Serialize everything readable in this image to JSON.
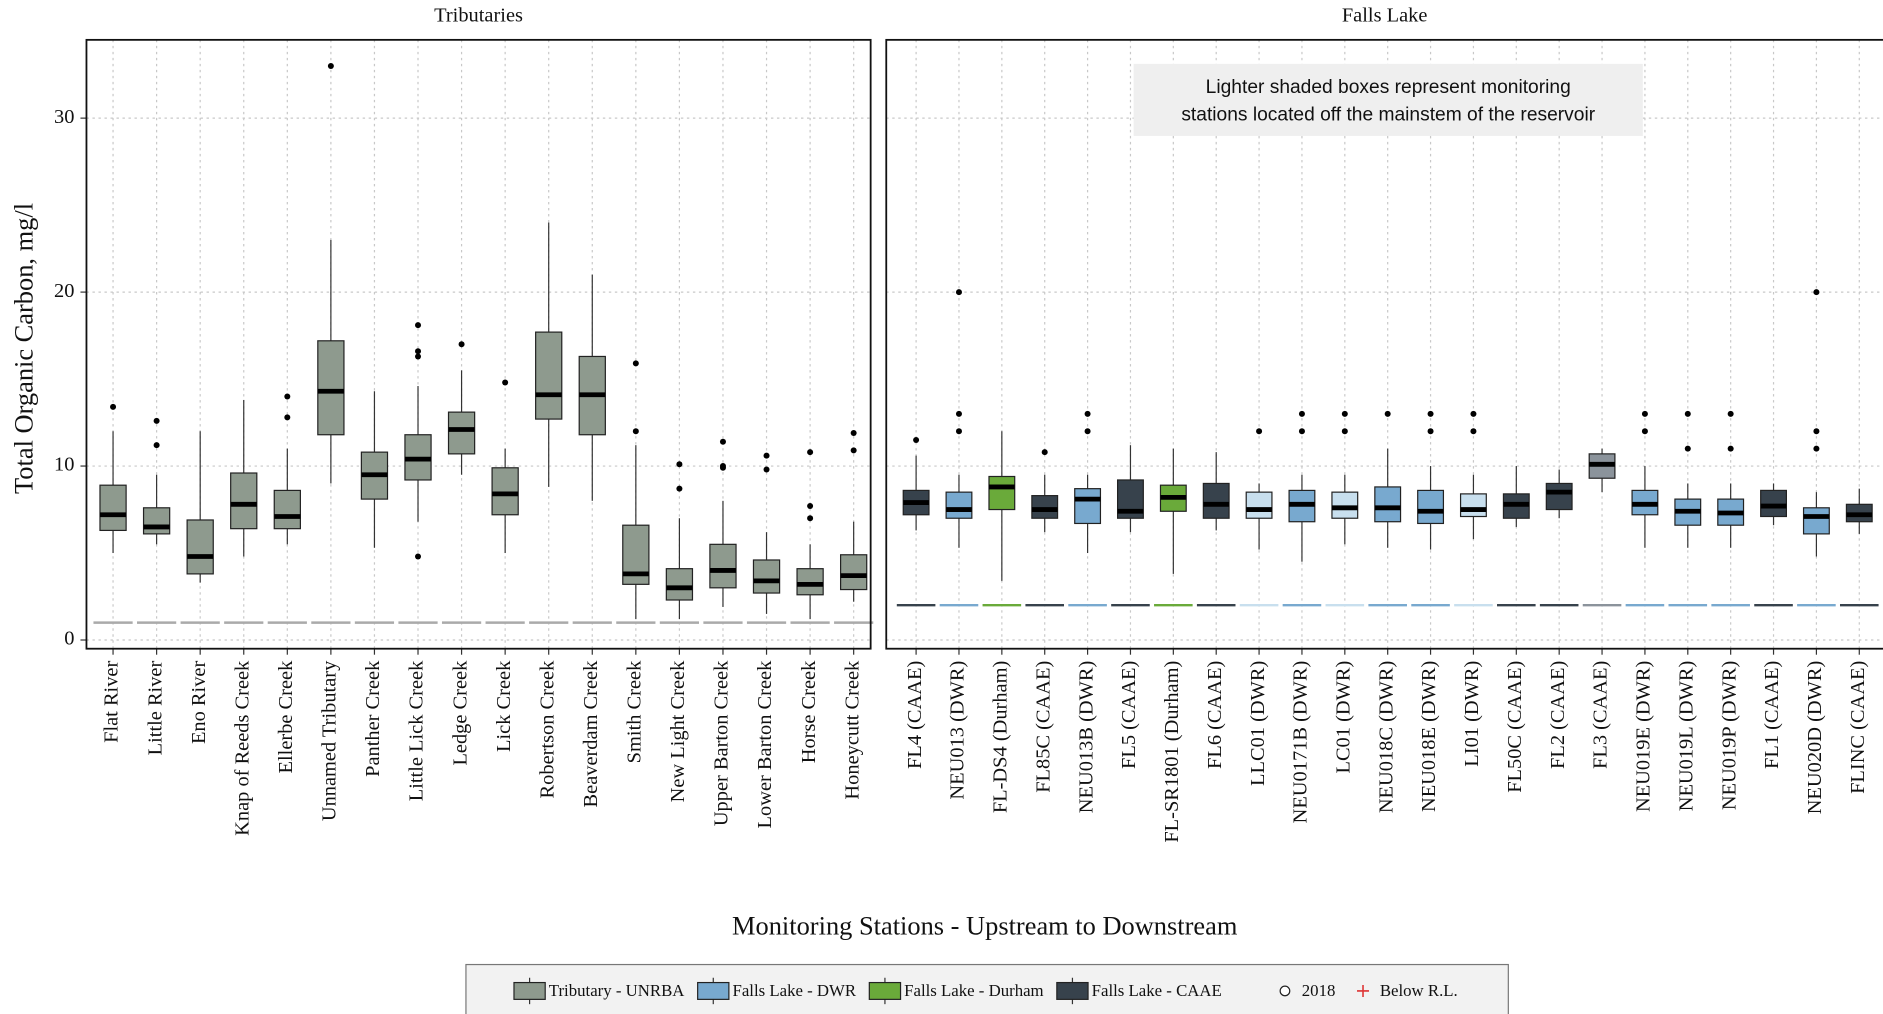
{
  "figure": {
    "y_label": "Total Organic Carbon, mg/l",
    "x_label": "Monitoring Stations - Upstream to Downstream",
    "legend": {
      "items": [
        {
          "name": "Tributary - UNRBA",
          "color": "#8e9a8e"
        },
        {
          "name": "Falls Lake - DWR",
          "color": "#78a9cf"
        },
        {
          "name": "Falls Lake - Durham",
          "color": "#6aaa3a"
        },
        {
          "name": "Falls Lake - CAAE",
          "color": "#37424c"
        }
      ],
      "points": [
        "2018",
        "Below R.L."
      ]
    }
  },
  "chart_data": [
    {
      "type": "box",
      "title": "Tributaries",
      "ylim": [
        -0.5,
        34.5
      ],
      "yticks": [
        0,
        10,
        20,
        30
      ],
      "grid": true,
      "reporting_limit": 1,
      "categories": [
        "Flat River",
        "Little River",
        "Eno River",
        "Knap of Reeds Creek",
        "Ellerbe Creek",
        "Unnamed Tributary",
        "Panther Creek",
        "Little Lick Creek",
        "Ledge Creek",
        "Lick Creek",
        "Robertson Creek",
        "Beaverdam Creek",
        "Smith Creek",
        "New Light Creek",
        "Upper Barton Creek",
        "Lower Barton Creek",
        "Horse Creek",
        "Honeycutt Creek"
      ],
      "colors": [
        "#8e9a8e",
        "#8e9a8e",
        "#8e9a8e",
        "#8e9a8e",
        "#8e9a8e",
        "#8e9a8e",
        "#8e9a8e",
        "#8e9a8e",
        "#8e9a8e",
        "#8e9a8e",
        "#8e9a8e",
        "#8e9a8e",
        "#8e9a8e",
        "#8e9a8e",
        "#8e9a8e",
        "#8e9a8e",
        "#8e9a8e",
        "#8e9a8e"
      ],
      "stats": [
        [
          5.0,
          6.3,
          7.2,
          8.9,
          12.0
        ],
        [
          5.5,
          6.1,
          6.5,
          7.6,
          9.5
        ],
        [
          3.3,
          3.8,
          4.8,
          6.9,
          12.0
        ],
        [
          4.8,
          6.4,
          7.8,
          9.6,
          13.8
        ],
        [
          5.5,
          6.4,
          7.1,
          8.6,
          11.0
        ],
        [
          9.0,
          11.8,
          14.3,
          17.2,
          23.0
        ],
        [
          5.3,
          8.1,
          9.5,
          10.8,
          14.3
        ],
        [
          6.8,
          9.2,
          10.4,
          11.8,
          14.6
        ],
        [
          9.5,
          10.7,
          12.1,
          13.1,
          15.5
        ],
        [
          5.0,
          7.2,
          8.4,
          9.9,
          11.0
        ],
        [
          8.8,
          12.7,
          14.1,
          17.7,
          24.0
        ],
        [
          8.0,
          11.8,
          14.1,
          16.3,
          21.0
        ],
        [
          1.2,
          3.2,
          3.8,
          6.6,
          11.2
        ],
        [
          1.2,
          2.3,
          3.0,
          4.1,
          7.0
        ],
        [
          1.9,
          3.0,
          4.0,
          5.5,
          8.0
        ],
        [
          1.5,
          2.7,
          3.4,
          4.6,
          6.2
        ],
        [
          1.2,
          2.6,
          3.2,
          4.1,
          5.5
        ],
        [
          2.2,
          2.9,
          3.7,
          4.9,
          6.8
        ]
      ],
      "outliers": [
        [
          13.4
        ],
        [
          11.2,
          12.6
        ],
        [],
        [],
        [
          12.8,
          14.0
        ],
        [
          33.0
        ],
        [],
        [
          18.1,
          16.6,
          16.3,
          4.8
        ],
        [
          17.0
        ],
        [
          14.8
        ],
        [],
        [],
        [
          15.9,
          12.0
        ],
        [
          10.1,
          8.7
        ],
        [
          11.4,
          10.0,
          9.9
        ],
        [
          10.6,
          9.8
        ],
        [
          10.8,
          7.7,
          7.0
        ],
        [
          11.9,
          10.9
        ]
      ]
    },
    {
      "type": "box",
      "title": "Falls Lake",
      "ylim": [
        -0.5,
        34.5
      ],
      "yticks": [
        0,
        10,
        20,
        30
      ],
      "grid": true,
      "reporting_limit": 2,
      "annotation": [
        "Lighter shaded boxes represent monitoring",
        "stations located off the mainstem of the reservoir"
      ],
      "categories": [
        "FL4 (CAAE)",
        "NEU013 (DWR)",
        "FL-DS4 (Durham)",
        "FL85C (CAAE)",
        "NEU013B (DWR)",
        "FL5 (CAAE)",
        "FL-SR1801 (Durham)",
        "FL6 (CAAE)",
        "LLC01 (DWR)",
        "NEU0171B (DWR)",
        "LC01 (DWR)",
        "NEU018C (DWR)",
        "NEU018E (DWR)",
        "LI01 (DWR)",
        "FL50C (CAAE)",
        "FL2 (CAAE)",
        "FL3 (CAAE)",
        "NEU019E (DWR)",
        "NEU019L (DWR)",
        "NEU019P (DWR)",
        "FL1 (CAAE)",
        "NEU020D (DWR)",
        "FLINC (CAAE)"
      ],
      "colors": [
        "#37424c",
        "#78a9cf",
        "#6aaa3a",
        "#37424c",
        "#78a9cf",
        "#37424c",
        "#6aaa3a",
        "#37424c",
        "#c8dfee",
        "#78a9cf",
        "#c8dfee",
        "#78a9cf",
        "#78a9cf",
        "#c8dfee",
        "#37424c",
        "#37424c",
        "#8b939b",
        "#78a9cf",
        "#78a9cf",
        "#78a9cf",
        "#37424c",
        "#78a9cf",
        "#37424c"
      ],
      "stats": [
        [
          6.3,
          7.2,
          7.9,
          8.6,
          10.6
        ],
        [
          5.3,
          7.0,
          7.5,
          8.5,
          9.5
        ],
        [
          3.4,
          7.5,
          8.8,
          9.4,
          12.0
        ],
        [
          6.2,
          7.0,
          7.5,
          8.3,
          9.5
        ],
        [
          5.0,
          6.7,
          8.1,
          8.7,
          9.5
        ],
        [
          6.2,
          7.0,
          7.4,
          9.2,
          11.2
        ],
        [
          3.8,
          7.4,
          8.2,
          8.9,
          11.0
        ],
        [
          6.3,
          7.0,
          7.8,
          9.0,
          10.8
        ],
        [
          5.2,
          7.0,
          7.5,
          8.5,
          9.0
        ],
        [
          4.5,
          6.8,
          7.8,
          8.6,
          9.5
        ],
        [
          5.5,
          7.0,
          7.6,
          8.5,
          9.5
        ],
        [
          5.3,
          6.8,
          7.6,
          8.8,
          11.0
        ],
        [
          5.2,
          6.7,
          7.4,
          8.6,
          10.0
        ],
        [
          5.8,
          7.1,
          7.5,
          8.4,
          9.5
        ],
        [
          6.5,
          7.0,
          7.8,
          8.4,
          10.0
        ],
        [
          7.0,
          7.5,
          8.5,
          9.0,
          9.8
        ],
        [
          8.5,
          9.3,
          10.1,
          10.7,
          11.0
        ],
        [
          5.3,
          7.2,
          7.8,
          8.6,
          10.0
        ],
        [
          5.3,
          6.6,
          7.4,
          8.1,
          9.0
        ],
        [
          5.3,
          6.6,
          7.3,
          8.1,
          9.0
        ],
        [
          6.6,
          7.1,
          7.7,
          8.6,
          9.0
        ],
        [
          4.8,
          6.1,
          7.1,
          7.6,
          8.5
        ],
        [
          6.1,
          6.8,
          7.2,
          7.8,
          8.7
        ]
      ],
      "outliers": [
        [
          11.5
        ],
        [
          20.0,
          13.0,
          12.0
        ],
        [],
        [
          10.8
        ],
        [
          13.0,
          12.0
        ],
        [],
        [],
        [],
        [
          12.0
        ],
        [
          13.0,
          12.0
        ],
        [
          13.0,
          12.0
        ],
        [
          13.0
        ],
        [
          13.0,
          12.0
        ],
        [
          13.0,
          12.0
        ],
        [],
        [],
        [],
        [
          13.0,
          12.0
        ],
        [
          13.0,
          11.0
        ],
        [
          13.0,
          11.0
        ],
        [],
        [
          20.0,
          12.0,
          11.0
        ],
        []
      ]
    }
  ]
}
